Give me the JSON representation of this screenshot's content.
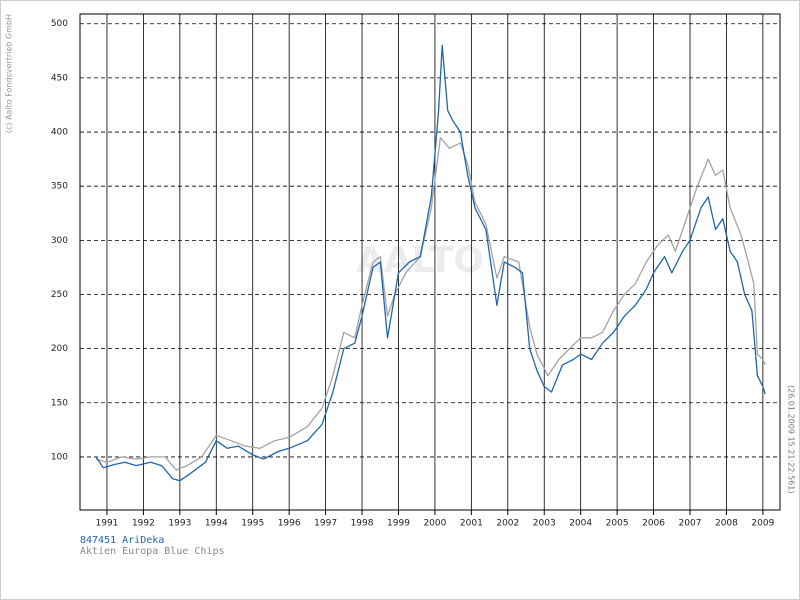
{
  "chart_data": {
    "type": "line",
    "copyright": "(c) Aalto Fondsvertrieb GmbH",
    "timestamp": "(26.01.2009 15:21:22:561)",
    "watermark": "AALTO",
    "xlim": [
      1990.26,
      2009.47
    ],
    "xticks": [
      1991,
      1992,
      1993,
      1994,
      1995,
      1996,
      1997,
      1998,
      1999,
      2000,
      2001,
      2002,
      2003,
      2004,
      2005,
      2006,
      2007,
      2008,
      2009
    ],
    "ylim": [
      51,
      509
    ],
    "yticks": [
      100,
      150,
      200,
      250,
      300,
      350,
      400,
      450,
      500
    ],
    "grid": true,
    "series": [
      {
        "name": "847451 AriDeka",
        "color": "#1f66ad",
        "x": [
          1990.7,
          1990.9,
          1991.2,
          1991.5,
          1991.8,
          1992.2,
          1992.5,
          1992.8,
          1993.0,
          1993.3,
          1993.7,
          1994.0,
          1994.3,
          1994.6,
          1995.0,
          1995.3,
          1995.7,
          1996.0,
          1996.5,
          1996.9,
          1997.2,
          1997.5,
          1997.8,
          1998.0,
          1998.3,
          1998.5,
          1998.7,
          1998.85,
          1999.0,
          1999.3,
          1999.6,
          1999.9,
          2000.1,
          2000.2,
          2000.35,
          2000.5,
          2000.7,
          2000.9,
          2001.1,
          2001.4,
          2001.7,
          2001.9,
          2002.2,
          2002.4,
          2002.6,
          2002.8,
          2003.0,
          2003.2,
          2003.5,
          2003.8,
          2004.0,
          2004.3,
          2004.6,
          2004.9,
          2005.2,
          2005.5,
          2005.8,
          2006.0,
          2006.3,
          2006.5,
          2006.8,
          2007.0,
          2007.3,
          2007.5,
          2007.7,
          2007.9,
          2008.1,
          2008.3,
          2008.5,
          2008.7,
          2008.85,
          2009.0,
          2009.06
        ],
        "values": [
          100,
          90,
          93,
          95,
          92,
          95,
          92,
          80,
          78,
          85,
          95,
          115,
          108,
          110,
          102,
          98,
          105,
          108,
          115,
          130,
          160,
          200,
          205,
          230,
          275,
          280,
          210,
          240,
          270,
          280,
          285,
          340,
          420,
          480,
          420,
          410,
          400,
          360,
          330,
          310,
          240,
          280,
          275,
          270,
          200,
          180,
          165,
          160,
          185,
          190,
          195,
          190,
          205,
          215,
          230,
          240,
          255,
          270,
          285,
          270,
          290,
          300,
          330,
          340,
          310,
          320,
          290,
          280,
          250,
          235,
          175,
          165,
          158
        ]
      },
      {
        "name": "Aktien Europa Blue Chips",
        "color": "#a3a3a3",
        "x": [
          1990.7,
          1991.0,
          1991.4,
          1991.8,
          1992.2,
          1992.6,
          1992.9,
          1993.2,
          1993.6,
          1994.0,
          1994.4,
          1994.8,
          1995.2,
          1995.6,
          1996.0,
          1996.5,
          1996.9,
          1997.2,
          1997.5,
          1997.8,
          1998.0,
          1998.3,
          1998.5,
          1998.7,
          1998.9,
          1999.2,
          1999.6,
          1999.9,
          2000.15,
          2000.4,
          2000.7,
          2000.9,
          2001.1,
          2001.4,
          2001.7,
          2001.9,
          2002.3,
          2002.6,
          2002.8,
          2003.1,
          2003.4,
          2003.7,
          2004.0,
          2004.3,
          2004.6,
          2004.9,
          2005.2,
          2005.5,
          2005.8,
          2006.1,
          2006.4,
          2006.6,
          2006.9,
          2007.2,
          2007.5,
          2007.7,
          2007.9,
          2008.1,
          2008.4,
          2008.6,
          2008.75,
          2008.85,
          2009.0,
          2009.06
        ],
        "values": [
          98,
          95,
          100,
          98,
          100,
          100,
          88,
          92,
          100,
          120,
          115,
          110,
          108,
          115,
          118,
          128,
          145,
          175,
          215,
          210,
          240,
          280,
          285,
          230,
          250,
          270,
          285,
          330,
          395,
          385,
          390,
          370,
          335,
          315,
          265,
          285,
          280,
          220,
          195,
          175,
          190,
          200,
          210,
          210,
          215,
          235,
          250,
          260,
          280,
          295,
          305,
          290,
          320,
          350,
          375,
          360,
          365,
          330,
          305,
          280,
          260,
          195,
          190,
          185
        ]
      }
    ]
  }
}
